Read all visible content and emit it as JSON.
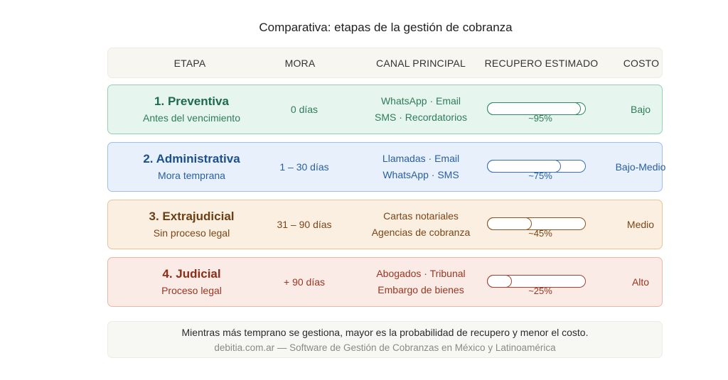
{
  "title": "Comparativa: etapas de la gestión de cobranza",
  "headers": {
    "etapa": "ETAPA",
    "mora": "MORA",
    "canal": "CANAL PRINCIPAL",
    "recupero": "RECUPERO ESTIMADO",
    "costo": "COSTO"
  },
  "stages": [
    {
      "name": "1. Preventiva",
      "subtitle": "Antes del vencimiento",
      "mora": "0 días",
      "canal_line1": "WhatsApp · Email",
      "canal_line2": "SMS · Recordatorios",
      "recupero_label": "~95%",
      "recupero_value": 0.95,
      "costo": "Bajo",
      "colors": {
        "bg": "#e6f5ee",
        "border": "#8fd3b5",
        "title": "#1e6b4c",
        "text": "#2e7d58",
        "bar": "#2f8a64"
      }
    },
    {
      "name": "2. Administrativa",
      "subtitle": "Mora temprana",
      "mora": "1 – 30 días",
      "canal_line1": "Llamadas · Email",
      "canal_line2": "WhatsApp · SMS",
      "recupero_label": "~75%",
      "recupero_value": 0.75,
      "costo": "Bajo-Medio",
      "colors": {
        "bg": "#e7f0fb",
        "border": "#9cc1ec",
        "title": "#1c4f8d",
        "text": "#2a5fa0",
        "bar": "#3b70b3"
      }
    },
    {
      "name": "3. Extrajudicial",
      "subtitle": "Sin proceso legal",
      "mora": "31 – 90 días",
      "canal_line1": "Cartas notariales",
      "canal_line2": "Agencias de cobranza",
      "recupero_label": "~45%",
      "recupero_value": 0.45,
      "costo": "Medio",
      "colors": {
        "bg": "#fbefe1",
        "border": "#e8c49b",
        "title": "#6b3f14",
        "text": "#7a4617",
        "bar": "#8a5420"
      }
    },
    {
      "name": "4. Judicial",
      "subtitle": "Proceso legal",
      "mora": "+ 90 días",
      "canal_line1": "Abogados · Tribunal",
      "canal_line2": "Embargo de bienes",
      "recupero_label": "~25%",
      "recupero_value": 0.25,
      "costo": "Alto",
      "colors": {
        "bg": "#fbebe6",
        "border": "#eab6a8",
        "title": "#8c2d18",
        "text": "#9a3520",
        "bar": "#a44430"
      }
    }
  ],
  "footer": {
    "note": "Mientras más temprano se gestiona, mayor es la probabilidad de recupero y menor el costo.",
    "credit": "debitia.com.ar — Software de Gestión de Cobranzas en México y Latinoamérica"
  }
}
